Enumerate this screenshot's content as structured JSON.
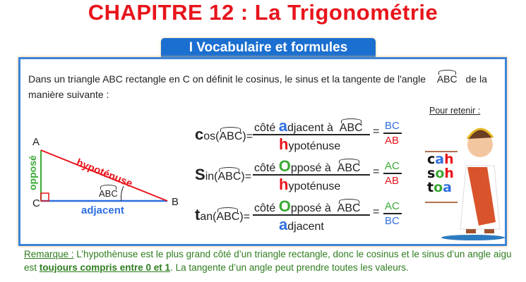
{
  "title": "CHAPITRE 12 : La Trigonométrie",
  "section_tab": "I Vocabulaire et formules",
  "intro": {
    "line1": "Dans un triangle ABC rectangle en C on définit le cosinus, le sinus et la tangente de l'angle",
    "angle": "ABC",
    "line1_end": "de la",
    "line2": "manière suivante :"
  },
  "triangle": {
    "A": "A",
    "B": "B",
    "C": "C",
    "hyp": "hypoténuse",
    "opp": "opposé",
    "adj": "adjacent",
    "angle": "ABC"
  },
  "colors": {
    "title": "#e8141b",
    "tab": "#1a6fd0",
    "adjacent": "#2f6fe0",
    "hypotenuse": "#e8141b",
    "oppose": "#3aaa35",
    "remark": "#2e7d1e"
  },
  "formulas": [
    {
      "fn_first": "c",
      "fn_rest": "os(",
      "angle": "ABC",
      "num_pre": "côté ",
      "num_big": "a",
      "num_rest": "djacent à",
      "den_big": "h",
      "den_rest": "ypoténuse",
      "res_num": "BC",
      "res_den": "AB"
    },
    {
      "fn_first": "S",
      "fn_rest": "in(",
      "angle": "ABC",
      "num_pre": "côté ",
      "num_big": "O",
      "num_rest": "pposé à",
      "den_big": "h",
      "den_rest": "ypoténuse",
      "res_num": "AC",
      "res_den": "AB"
    },
    {
      "fn_first": "t",
      "fn_rest": "an(",
      "angle": "ABC",
      "num_pre": "côté ",
      "num_big": "O",
      "num_rest": "pposé à",
      "den_big": "a",
      "den_rest": "djacent",
      "res_num": "AC",
      "res_den": "BC"
    }
  ],
  "mnemonic": {
    "heading": "Pour retenir :",
    "rows": [
      [
        "c",
        "a",
        "h"
      ],
      [
        "s",
        "o",
        "h"
      ],
      [
        "t",
        "o",
        "a"
      ]
    ]
  },
  "remark": {
    "label": "Remarque :",
    "text1": " L’hypothènuse est le plus grand côté d’un triangle rectangle, donc le cosinus et le sinus d’un angle aigu est ",
    "bold": "toujours compris entre 0 et 1",
    "text2": ". La tangente d’un angle peut prendre toutes les valeurs."
  }
}
